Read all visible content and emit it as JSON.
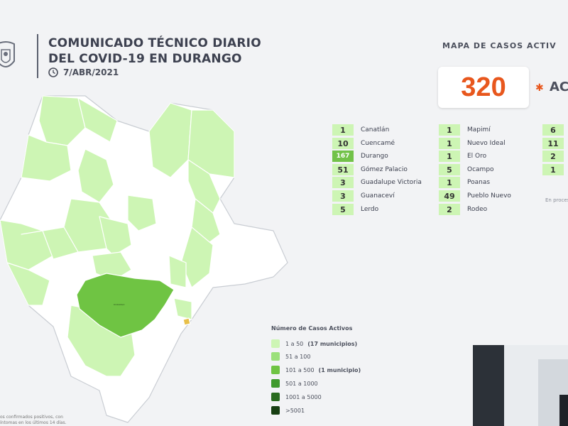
{
  "header": {
    "title_line1": "COMUNICADO TÉCNICO DIARIO",
    "title_line2": "DEL COVID-19 EN DURANGO",
    "date": "7/ABR/2021"
  },
  "map_section": {
    "heading": "MAPA DE CASOS ACTIV",
    "total": "320",
    "total_label": "ACTI"
  },
  "municipalities_col1": [
    {
      "count": "1",
      "name": "Canatlán"
    },
    {
      "count": "10",
      "name": "Cuencamé"
    },
    {
      "count": "167",
      "name": "Durango"
    },
    {
      "count": "51",
      "name": "Gómez Palacio"
    },
    {
      "count": "3",
      "name": "Guadalupe Victoria"
    },
    {
      "count": "3",
      "name": "Guanaceví"
    },
    {
      "count": "5",
      "name": "Lerdo"
    }
  ],
  "municipalities_col2": [
    {
      "count": "1",
      "name": "Mapimí"
    },
    {
      "count": "1",
      "name": "Nuevo Ideal"
    },
    {
      "count": "1",
      "name": "El Oro"
    },
    {
      "count": "5",
      "name": "Ocampo"
    },
    {
      "count": "1",
      "name": "Poanas"
    },
    {
      "count": "49",
      "name": "Pueblo Nuevo"
    },
    {
      "count": "2",
      "name": "Rodeo"
    }
  ],
  "municipalities_col3": [
    {
      "count": "6"
    },
    {
      "count": "11"
    },
    {
      "count": "2"
    },
    {
      "count": "1"
    }
  ],
  "in_process_note": "En proces",
  "legend": {
    "title": "Número de Casos Activos",
    "items": [
      {
        "label": "1 a 50",
        "note": "(17 municipios)",
        "color": "#cdf5b4"
      },
      {
        "label": "51 a 100",
        "note": "",
        "color": "#9be07a"
      },
      {
        "label": "101 a 500",
        "note": "(1 municipio)",
        "color": "#6fc443"
      },
      {
        "label": "501 a 1000",
        "note": "",
        "color": "#3f9a2c"
      },
      {
        "label": "1001 a 5000",
        "note": "",
        "color": "#2a6b1f"
      },
      {
        "label": ">5001",
        "note": "",
        "color": "#173f12"
      }
    ]
  },
  "footnote": {
    "line1": "os confirmados positivos, con",
    "line2": "íntomas en los últimos 14 días."
  },
  "colors": {
    "accent_orange": "#e8571d",
    "light_green": "#cdf5b4",
    "dark_green": "#6fc443",
    "white_region": "#ffffff"
  }
}
